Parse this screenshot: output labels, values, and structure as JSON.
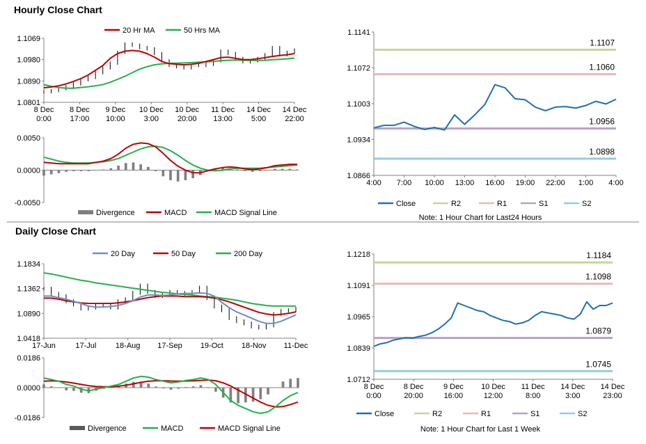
{
  "sections": {
    "hourly_title": "Hourly Close Chart",
    "daily_title": "Daily Close Chart"
  },
  "colors": {
    "close": "#1f6eb0",
    "ma_red": "#c00000",
    "ma_green": "#22b14c",
    "ma_blue": "#6a8fc4",
    "r2": "#c4d79b",
    "r1": "#e6b9b8",
    "s1": "#b3a2c7",
    "s2": "#93cddd",
    "divergence": "#595959",
    "separator": "#7f7f7f"
  },
  "chart_data": [
    {
      "id": "hourly_price",
      "type": "line",
      "legend": [
        "20 Hr MA",
        "50 Hrs MA"
      ],
      "y_ticks": [
        "1.1069",
        "1.0980",
        "1.0890",
        "1.0801"
      ],
      "ylim": [
        1.0801,
        1.1069
      ],
      "x_ticks": [
        "8 Dec\n0:00",
        "8 Dec\n17:00",
        "9 Dec\n10:00",
        "10 Dec\n3:00",
        "10 Dec\n20:00",
        "11 Dec\n13:00",
        "14 Dec\n5:00",
        "14 Dec\n22:00"
      ],
      "close": [
        1.0845,
        1.085,
        1.0858,
        1.0866,
        1.0878,
        1.0895,
        1.0905,
        1.0925,
        1.0945,
        1.0965,
        1.101,
        1.1045,
        1.104,
        1.103,
        1.1025,
        1.1005,
        1.0975,
        1.0955,
        1.095,
        1.0945,
        1.0955,
        1.0955,
        1.096,
        1.0975,
        1.1015,
        1.1005,
        1.0985,
        1.097,
        1.0975,
        1.0985,
        1.1,
        1.103,
        1.1,
        1.101,
        1.102
      ],
      "ma20": [
        1.0862,
        1.0865,
        1.087,
        1.0878,
        1.0888,
        1.09,
        1.0915,
        1.0935,
        1.0955,
        1.0985,
        1.1005,
        1.1015,
        1.1018,
        1.1015,
        1.1005,
        1.099,
        1.0972,
        1.0963,
        1.096,
        1.0958,
        1.096,
        1.0964,
        1.0972,
        1.098,
        1.0988,
        1.099,
        1.0985,
        1.098,
        1.098,
        1.0983,
        1.0988,
        1.0993,
        1.0997,
        1.1,
        1.1005
      ],
      "ma50": [
        1.0875,
        1.0868,
        1.0863,
        1.086,
        1.086,
        1.0863,
        1.0866,
        1.087,
        1.0875,
        1.0885,
        1.0897,
        1.091,
        1.0925,
        1.094,
        1.095,
        1.0958,
        1.0962,
        1.0964,
        1.0965,
        1.0966,
        1.0967,
        1.0969,
        1.097,
        1.0972,
        1.0975,
        1.0977,
        1.0978,
        1.0977,
        1.0976,
        1.0976,
        1.0977,
        1.0979,
        1.0981,
        1.0983,
        1.0986
      ]
    },
    {
      "id": "hourly_macd",
      "type": "line",
      "legend": [
        "Divergence",
        "MACD",
        "MACD Signal Line"
      ],
      "y_ticks": [
        "0.0050",
        "0.0000",
        "-0.0050"
      ],
      "ylim": [
        -0.005,
        0.005
      ],
      "macd": [
        0.0012,
        0.0011,
        0.001,
        0.001,
        0.001,
        0.001,
        0.001,
        0.0012,
        0.0014,
        0.0018,
        0.0025,
        0.0034,
        0.004,
        0.0042,
        0.0041,
        0.0036,
        0.0026,
        0.0015,
        0.0006,
        0.0,
        -0.0004,
        -0.0004,
        -0.0001,
        0.0002,
        0.0004,
        0.0005,
        0.0004,
        0.0002,
        0.0001,
        0.0002,
        0.0004,
        0.0007,
        0.0008,
        0.0009,
        0.0009
      ],
      "signal": [
        0.002,
        0.0017,
        0.0014,
        0.0012,
        0.0011,
        0.0011,
        0.0011,
        0.0012,
        0.0013,
        0.0015,
        0.0018,
        0.0023,
        0.0028,
        0.0033,
        0.0036,
        0.0037,
        0.0035,
        0.003,
        0.0023,
        0.0015,
        0.0008,
        0.0003,
        0.0,
        -0.0001,
        0.0,
        0.0002,
        0.0003,
        0.0003,
        0.0003,
        0.0003,
        0.0004,
        0.0005,
        0.0006,
        0.0007,
        0.0008
      ]
    },
    {
      "id": "hourly_levels",
      "type": "line",
      "legend": [
        "Close",
        "R2",
        "R1",
        "S1",
        "S2"
      ],
      "note": "Note: 1 Hour Chart for Last24 Hours",
      "y_ticks": [
        "1.1141",
        "1.1072",
        "1.1003",
        "1.0934",
        "1.0866"
      ],
      "ylim": [
        1.0866,
        1.1141
      ],
      "x_ticks": [
        "4:00",
        "7:00",
        "10:00",
        "13:00",
        "16:00",
        "19:00",
        "22:00",
        "1:00",
        "4:00"
      ],
      "levels": [
        {
          "name": "R2",
          "value": 1.1107,
          "label": "1.1107"
        },
        {
          "name": "R1",
          "value": 1.106,
          "label": "1.1060"
        },
        {
          "name": "S1",
          "value": 1.0956,
          "label": "1.0956"
        },
        {
          "name": "S2",
          "value": 1.0898,
          "label": "1.0898"
        }
      ],
      "close": [
        1.0957,
        1.0962,
        1.0962,
        1.0968,
        1.096,
        1.0954,
        1.0958,
        1.0953,
        1.0982,
        1.0964,
        1.0982,
        1.1002,
        1.104,
        1.1034,
        1.1013,
        1.1011,
        1.0997,
        1.099,
        1.0997,
        1.0998,
        1.0995,
        1.1,
        1.1008,
        1.1003,
        1.1012
      ]
    },
    {
      "id": "daily_price",
      "type": "line",
      "legend": [
        "20 Day",
        "50 Day",
        "200 Day"
      ],
      "y_ticks": [
        "1.1834",
        "1.1362",
        "1.0890",
        "1.0418"
      ],
      "ylim": [
        1.0418,
        1.1834
      ],
      "x_ticks": [
        "17-Jun",
        "17-Jul",
        "18-Aug",
        "17-Sep",
        "19-Oct",
        "18-Nov",
        "11-Dec"
      ],
      "close": [
        1.136,
        1.126,
        1.122,
        1.112,
        1.106,
        1.098,
        1.1,
        1.104,
        1.104,
        1.1,
        1.112,
        1.116,
        1.128,
        1.142,
        1.13,
        1.122,
        1.124,
        1.13,
        1.128,
        1.126,
        1.13,
        1.138,
        1.118,
        1.102,
        1.095,
        1.08,
        1.074,
        1.07,
        1.064,
        1.062,
        1.066,
        1.088,
        1.094,
        1.095,
        1.098
      ],
      "ma20": [
        1.122,
        1.122,
        1.119,
        1.116,
        1.112,
        1.108,
        1.103,
        1.101,
        1.101,
        1.102,
        1.104,
        1.108,
        1.113,
        1.12,
        1.124,
        1.124,
        1.123,
        1.124,
        1.126,
        1.127,
        1.127,
        1.128,
        1.127,
        1.122,
        1.11,
        1.1,
        1.092,
        1.086,
        1.08,
        1.074,
        1.07,
        1.07,
        1.074,
        1.08,
        1.086
      ],
      "ma50": [
        1.118,
        1.118,
        1.116,
        1.113,
        1.111,
        1.109,
        1.108,
        1.108,
        1.108,
        1.108,
        1.109,
        1.111,
        1.113,
        1.116,
        1.119,
        1.121,
        1.122,
        1.122,
        1.122,
        1.121,
        1.121,
        1.121,
        1.12,
        1.118,
        1.115,
        1.111,
        1.106,
        1.101,
        1.096,
        1.091,
        1.088,
        1.086,
        1.087,
        1.089,
        1.092
      ],
      "ma200": [
        1.166,
        1.164,
        1.161,
        1.158,
        1.155,
        1.152,
        1.15,
        1.147,
        1.145,
        1.143,
        1.141,
        1.139,
        1.137,
        1.135,
        1.133,
        1.131,
        1.129,
        1.128,
        1.126,
        1.125,
        1.124,
        1.122,
        1.121,
        1.12,
        1.118,
        1.116,
        1.114,
        1.111,
        1.108,
        1.106,
        1.104,
        1.103,
        1.103,
        1.103,
        1.103
      ]
    },
    {
      "id": "daily_macd",
      "type": "line",
      "legend": [
        "Divergence",
        "MACD",
        "MACD Signal Line"
      ],
      "y_ticks": [
        "0.0186",
        "0.0000",
        "-0.0186"
      ],
      "ylim": [
        -0.0186,
        0.0186
      ],
      "macd": [
        0.006,
        0.005,
        0.004,
        0.002,
        0.001,
        -0.001,
        -0.002,
        -0.001,
        0.0,
        0.001,
        0.002,
        0.004,
        0.006,
        0.007,
        0.0065,
        0.005,
        0.004,
        0.003,
        0.0035,
        0.0045,
        0.005,
        0.006,
        0.005,
        0.002,
        -0.003,
        -0.008,
        -0.011,
        -0.013,
        -0.015,
        -0.016,
        -0.015,
        -0.012,
        -0.008,
        -0.005,
        -0.003
      ],
      "signal": [
        0.004,
        0.0042,
        0.004,
        0.0035,
        0.0028,
        0.002,
        0.0012,
        0.0007,
        0.0005,
        0.0006,
        0.0009,
        0.0015,
        0.0024,
        0.0033,
        0.004,
        0.0043,
        0.0043,
        0.0041,
        0.004,
        0.0041,
        0.0042,
        0.0045,
        0.0047,
        0.0043,
        0.003,
        0.001,
        -0.0015,
        -0.004,
        -0.0065,
        -0.009,
        -0.011,
        -0.012,
        -0.0118,
        -0.0105,
        -0.009
      ]
    },
    {
      "id": "daily_levels",
      "type": "line",
      "legend": [
        "Close",
        "R2",
        "R1",
        "S1",
        "S2"
      ],
      "note": "Note: 1 Hour Chart for Last 1 Week",
      "y_ticks": [
        "1.1218",
        "1.1091",
        "1.0965",
        "1.0839",
        "1.0712"
      ],
      "ylim": [
        1.0712,
        1.1218
      ],
      "x_ticks": [
        "8 Dec\n0:00",
        "8 Dec\n20:00",
        "9 Dec\n16:00",
        "10 Dec\n12:00",
        "11 Dec\n8:00",
        "14 Dec\n3:00",
        "14 Dec\n23:00"
      ],
      "levels": [
        {
          "name": "R2",
          "value": 1.1184,
          "label": "1.1184"
        },
        {
          "name": "R1",
          "value": 1.1098,
          "label": "1.1098"
        },
        {
          "name": "S1",
          "value": 1.0879,
          "label": "1.0879"
        },
        {
          "name": "S2",
          "value": 1.0745,
          "label": "1.0745"
        }
      ],
      "close": [
        1.0845,
        1.0855,
        1.086,
        1.087,
        1.0875,
        1.088,
        1.0878,
        1.0885,
        1.089,
        1.09,
        1.0915,
        1.0935,
        1.096,
        1.102,
        1.101,
        1.1,
        1.099,
        1.0985,
        1.097,
        1.096,
        1.095,
        1.0945,
        1.0935,
        1.094,
        1.095,
        1.097,
        1.0985,
        1.098,
        1.0975,
        1.097,
        1.096,
        1.0955,
        1.0975,
        1.1025,
        1.0995,
        1.101,
        1.101,
        1.102
      ]
    }
  ]
}
